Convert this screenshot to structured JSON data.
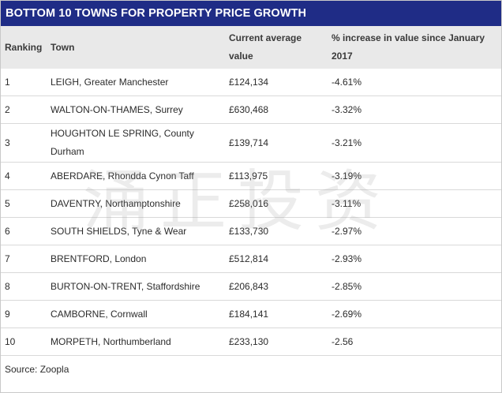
{
  "title": "BOTTOM 10 TOWNS FOR PROPERTY PRICE GROWTH",
  "columns": [
    "Ranking",
    "Town",
    "Current average value",
    "% increase in value since January 2017"
  ],
  "rows": [
    {
      "rank": "1",
      "town": "LEIGH, Greater Manchester",
      "value": "£124,134",
      "change": "-4.61%"
    },
    {
      "rank": "2",
      "town": "WALTON-ON-THAMES, Surrey",
      "value": "£630,468",
      "change": "-3.32%"
    },
    {
      "rank": "3",
      "town": "HOUGHTON LE SPRING, County Durham",
      "value": "£139,714",
      "change": "-3.21%"
    },
    {
      "rank": "4",
      "town": "ABERDARE, Rhondda Cynon Taff",
      "value": "£113,975",
      "change": "-3.19%"
    },
    {
      "rank": "5",
      "town": "DAVENTRY, Northamptonshire",
      "value": "£258,016",
      "change": "-3.11%"
    },
    {
      "rank": "6",
      "town": "SOUTH SHIELDS, Tyne & Wear",
      "value": "£133,730",
      "change": "-2.97%"
    },
    {
      "rank": "7",
      "town": "BRENTFORD, London",
      "value": "£512,814",
      "change": "-2.93%"
    },
    {
      "rank": "8",
      "town": "BURTON-ON-TRENT, Staffordshire",
      "value": "£206,843",
      "change": "-2.85%"
    },
    {
      "rank": "9",
      "town": "CAMBORNE, Cornwall",
      "value": "£184,141",
      "change": "-2.69%"
    },
    {
      "rank": "10",
      "town": "MORPETH, Northumberland",
      "value": "£233,130",
      "change": "-2.56"
    }
  ],
  "source": "Source: Zoopla",
  "watermark": "涌正投资",
  "colors": {
    "title_bg": "#1f2c86",
    "header_bg": "#e9e9e9"
  }
}
